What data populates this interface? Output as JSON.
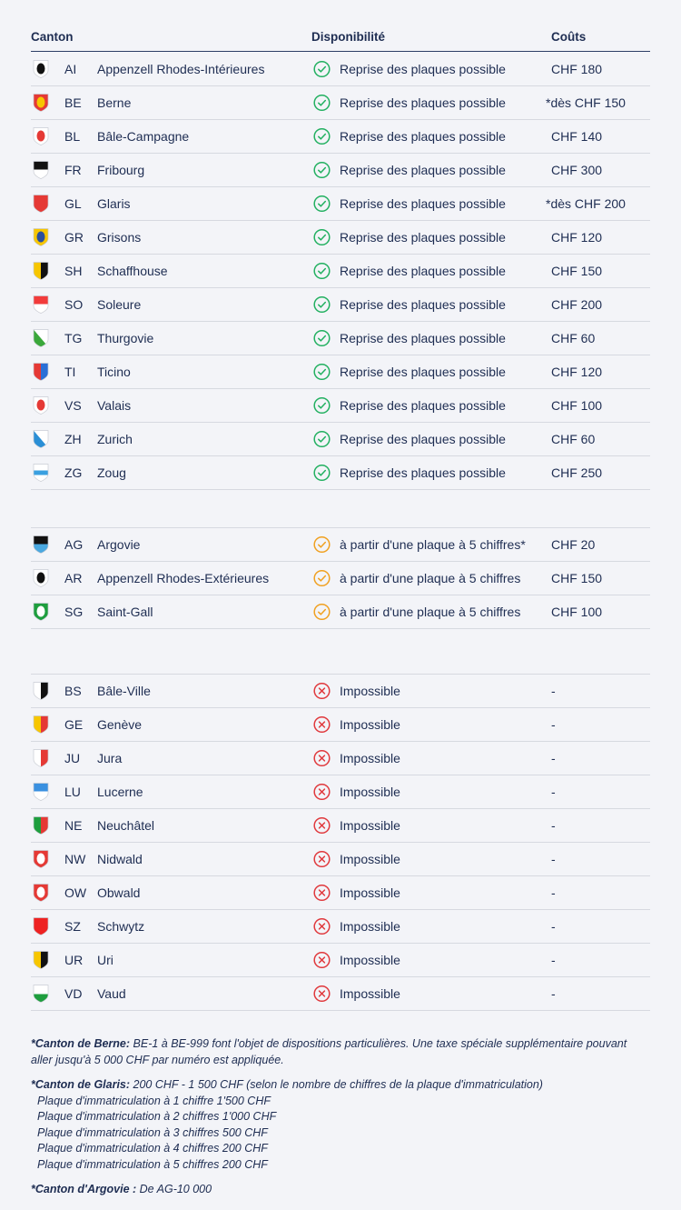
{
  "header": {
    "canton": "Canton",
    "availability": "Disponibilité",
    "costs": "Coûts"
  },
  "status_colors": {
    "ok": "#22b060",
    "partial": "#f0a020",
    "no": "#e0383c"
  },
  "groups": [
    {
      "status": "ok",
      "rows": [
        {
          "code": "AI",
          "name": "Appenzell Rhodes-Intérieures",
          "status": "Reprise des plaques possible",
          "cost": "CHF 180",
          "flag": [
            "#ffffff",
            "#111111"
          ]
        },
        {
          "code": "BE",
          "name": "Berne",
          "status": "Reprise des plaques possible",
          "cost": "*dès CHF 150",
          "flag": [
            "#e53935",
            "#f7c600"
          ]
        },
        {
          "code": "BL",
          "name": "Bâle-Campagne",
          "status": "Reprise des plaques possible",
          "cost": "CHF 140",
          "flag": [
            "#ffffff",
            "#e53935"
          ]
        },
        {
          "code": "FR",
          "name": "Fribourg",
          "status": "Reprise des plaques possible",
          "cost": "CHF 300",
          "flag": [
            "#111111",
            "#ffffff"
          ]
        },
        {
          "code": "GL",
          "name": "Glaris",
          "status": "Reprise des plaques possible",
          "cost": "*dès CHF 200",
          "flag": [
            "#e53935",
            "#e53935"
          ]
        },
        {
          "code": "GR",
          "name": "Grisons",
          "status": "Reprise des plaques possible",
          "cost": "CHF 120",
          "flag": [
            "#f7c600",
            "#2b4f9e"
          ]
        },
        {
          "code": "SH",
          "name": "Schaffhouse",
          "status": "Reprise des plaques possible",
          "cost": "CHF 150",
          "flag": [
            "#f7c600",
            "#111111"
          ]
        },
        {
          "code": "SO",
          "name": "Soleure",
          "status": "Reprise des plaques possible",
          "cost": "CHF 200",
          "flag": [
            "#f23b3b",
            "#ffffff"
          ]
        },
        {
          "code": "TG",
          "name": "Thurgovie",
          "status": "Reprise des plaques possible",
          "cost": "CHF 60",
          "flag": [
            "#ffffff",
            "#3aa83a"
          ]
        },
        {
          "code": "TI",
          "name": "Ticino",
          "status": "Reprise des plaques possible",
          "cost": "CHF 120",
          "flag": [
            "#e53935",
            "#2a6fd6"
          ]
        },
        {
          "code": "VS",
          "name": "Valais",
          "status": "Reprise des plaques possible",
          "cost": "CHF 100",
          "flag": [
            "#ffffff",
            "#e53935"
          ]
        },
        {
          "code": "ZH",
          "name": "Zurich",
          "status": "Reprise des plaques possible",
          "cost": "CHF 60",
          "flag": [
            "#ffffff",
            "#2a8fd6"
          ]
        },
        {
          "code": "ZG",
          "name": "Zoug",
          "status": "Reprise des plaques possible",
          "cost": "CHF 250",
          "flag": [
            "#ffffff",
            "#3aa0e0"
          ]
        }
      ]
    },
    {
      "status": "partial",
      "rows": [
        {
          "code": "AG",
          "name": "Argovie",
          "status": "à partir d'une plaque à 5 chiffres*",
          "cost": "CHF 20",
          "flag": [
            "#111111",
            "#4aa8e0"
          ]
        },
        {
          "code": "AR",
          "name": "Appenzell Rhodes-Extérieures",
          "status": "à partir d'une plaque à 5 chiffres",
          "cost": "CHF 150",
          "flag": [
            "#ffffff",
            "#111111"
          ]
        },
        {
          "code": "SG",
          "name": "Saint-Gall",
          "status": "à partir d'une plaque à 5 chiffres",
          "cost": "CHF 100",
          "flag": [
            "#1e9e3e",
            "#ffffff"
          ]
        }
      ]
    },
    {
      "status": "no",
      "rows": [
        {
          "code": "BS",
          "name": "Bâle-Ville",
          "status": "Impossible",
          "cost": "-",
          "flag": [
            "#ffffff",
            "#111111"
          ]
        },
        {
          "code": "GE",
          "name": "Genève",
          "status": "Impossible",
          "cost": "-",
          "flag": [
            "#f7c600",
            "#e53935"
          ]
        },
        {
          "code": "JU",
          "name": "Jura",
          "status": "Impossible",
          "cost": "-",
          "flag": [
            "#ffffff",
            "#e53935"
          ]
        },
        {
          "code": "LU",
          "name": "Lucerne",
          "status": "Impossible",
          "cost": "-",
          "flag": [
            "#3a90e0",
            "#ffffff"
          ]
        },
        {
          "code": "NE",
          "name": "Neuchâtel",
          "status": "Impossible",
          "cost": "-",
          "flag": [
            "#1e9e3e",
            "#e53935"
          ]
        },
        {
          "code": "NW",
          "name": "Nidwald",
          "status": "Impossible",
          "cost": "-",
          "flag": [
            "#e53935",
            "#ffffff"
          ]
        },
        {
          "code": "OW",
          "name": "Obwald",
          "status": "Impossible",
          "cost": "-",
          "flag": [
            "#e53935",
            "#ffffff"
          ]
        },
        {
          "code": "SZ",
          "name": "Schwytz",
          "status": "Impossible",
          "cost": "-",
          "flag": [
            "#ee2222",
            "#ee2222"
          ]
        },
        {
          "code": "UR",
          "name": "Uri",
          "status": "Impossible",
          "cost": "-",
          "flag": [
            "#f7c600",
            "#111111"
          ]
        },
        {
          "code": "VD",
          "name": "Vaud",
          "status": "Impossible",
          "cost": "-",
          "flag": [
            "#ffffff",
            "#1e9e3e"
          ]
        }
      ]
    }
  ],
  "notes": {
    "berne_label": "*Canton de Berne:",
    "berne_text": " BE-1 à BE-999 font l'objet de dispositions particulières. Une taxe spéciale supplémentaire pouvant aller jusqu'à 5 000 CHF par numéro est appliquée.",
    "glaris_label": "*Canton de Glaris:",
    "glaris_text": " 200 CHF - 1 500 CHF (selon le nombre de chiffres de la plaque d'immatriculation)",
    "glaris_lines": [
      "Plaque d'immatriculation à 1 chiffre 1'500 CHF",
      "Plaque d'immatriculation à 2 chiffres 1'000 CHF",
      "Plaque d'immatriculation à 3 chiffres 500 CHF",
      "Plaque d'immatriculation à 4 chiffres 200 CHF",
      "Plaque d'immatriculation à 5 chiffres 200 CHF"
    ],
    "argovie_label": "*Canton d'Argovie :",
    "argovie_text": " De AG-10 000"
  }
}
